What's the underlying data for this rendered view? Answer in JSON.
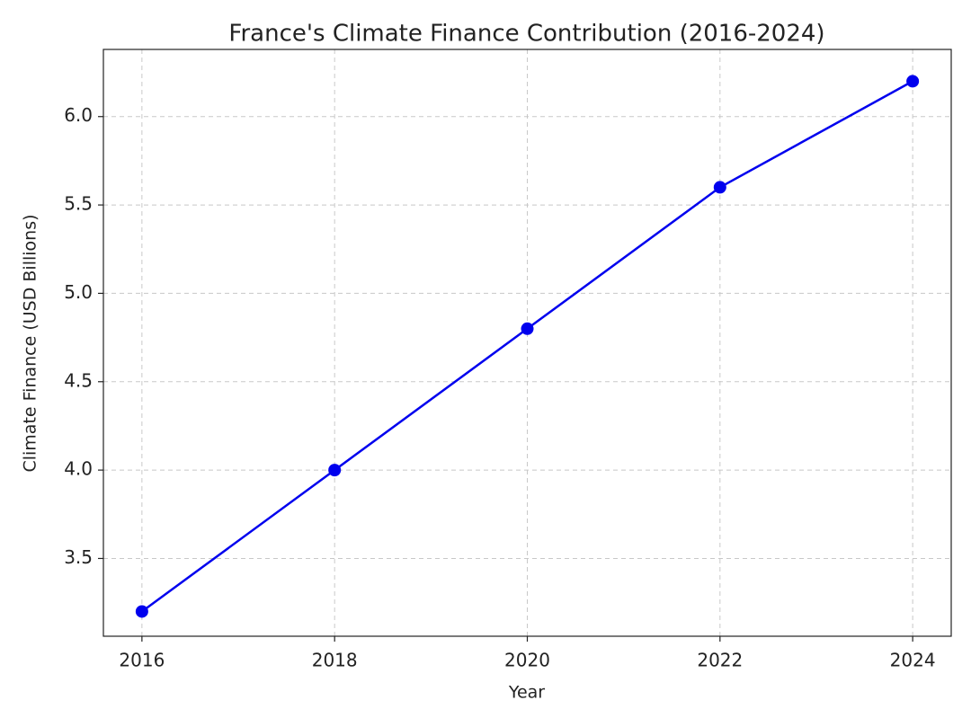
{
  "chart_data": {
    "type": "line",
    "title": "France's Climate Finance Contribution (2016-2024)",
    "xlabel": "Year",
    "ylabel": "Climate Finance (USD Billions)",
    "x": [
      2016,
      2018,
      2020,
      2022,
      2024
    ],
    "series": [
      {
        "color": "#0000ee",
        "values": [
          3.2,
          4.0,
          4.8,
          5.6,
          6.2
        ]
      }
    ],
    "xlim": [
      2015.6,
      2024.4
    ],
    "ylim": [
      3.06,
      6.38
    ],
    "xticks": [
      2016,
      2018,
      2020,
      2022,
      2024
    ],
    "yticks": [
      3.5,
      {
        "value": 4,
        "label": "4.0"
      },
      4.5,
      {
        "value": 5,
        "label": "5.0"
      },
      5.5,
      {
        "value": 6,
        "label": "6.0"
      }
    ],
    "grid": true
  }
}
